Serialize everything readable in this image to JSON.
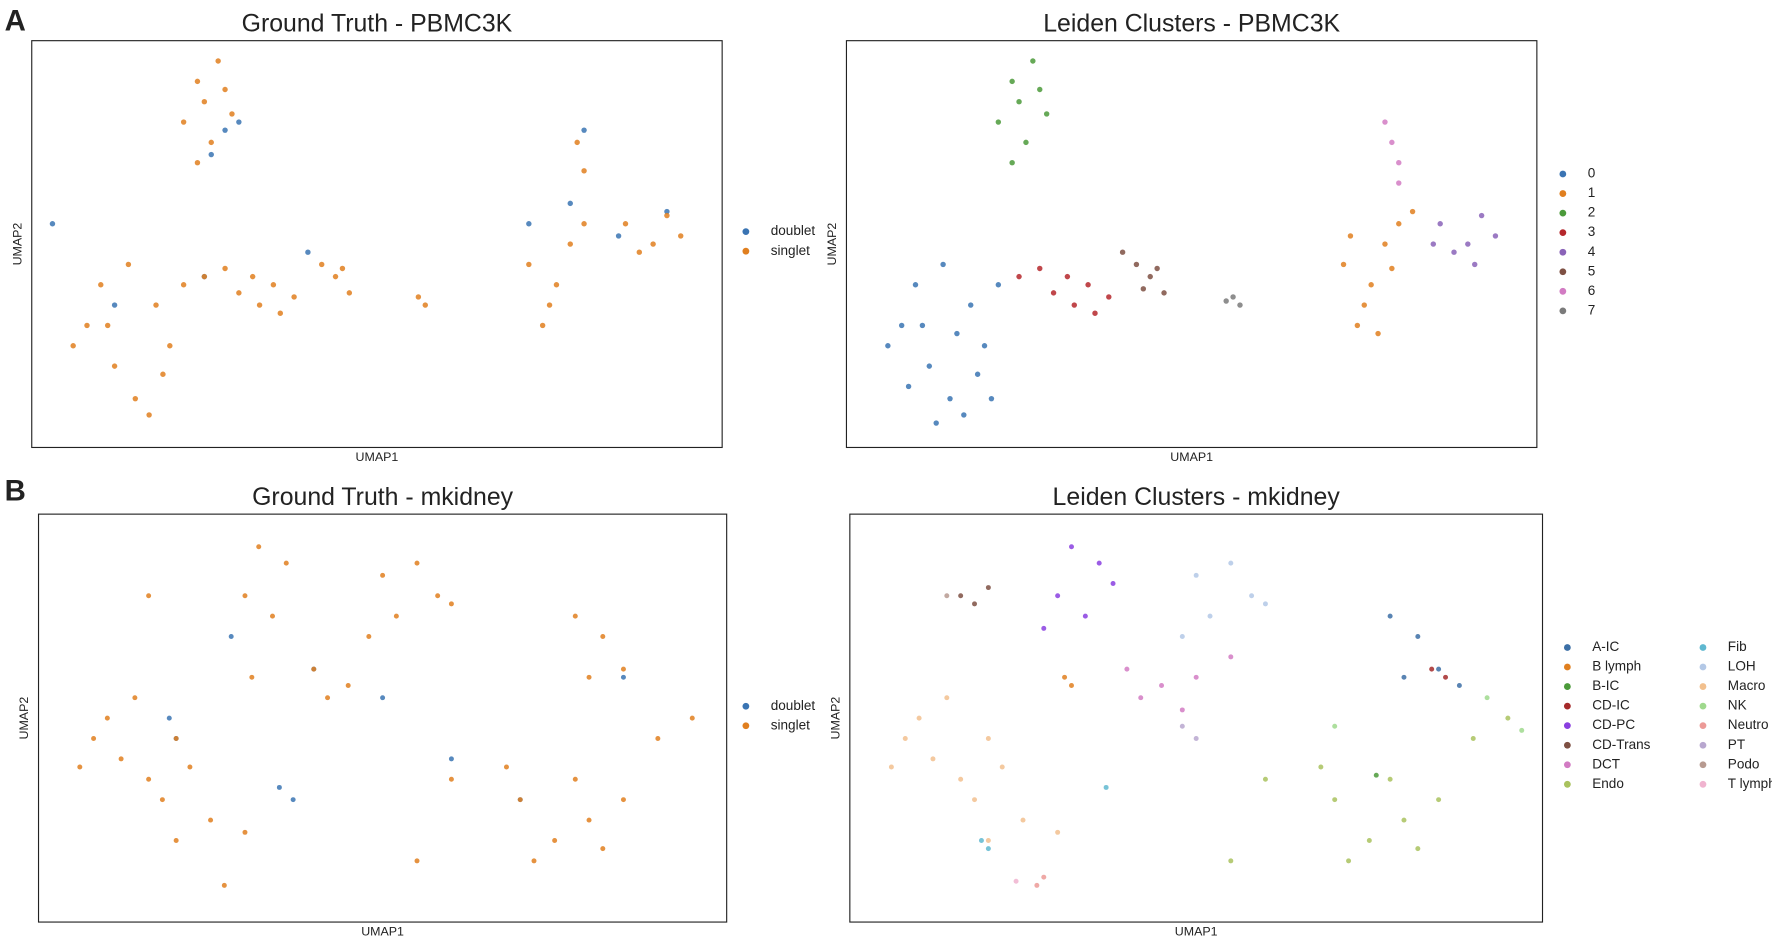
{
  "panel_labels": [
    "A",
    "B"
  ],
  "chart_data": [
    {
      "type": "scatter",
      "title": "Ground Truth - PBMC3K",
      "xlabel": "UMAP1",
      "ylabel": "UMAP2",
      "xlim": [
        0,
        100
      ],
      "ylim": [
        0,
        100
      ],
      "legend": "outside right",
      "legend_columns": 1,
      "series": [
        {
          "name": "doublet",
          "color": "#3a74b3",
          "x": [
            28,
            26,
            30,
            12,
            25,
            72,
            78,
            92,
            80,
            40,
            85,
            3
          ],
          "y": [
            78,
            72,
            80,
            35,
            42,
            55,
            60,
            58,
            78,
            48,
            52,
            55
          ]
        },
        {
          "name": "singlet",
          "color": "#e07f1f",
          "x": [
            8,
            12,
            15,
            10,
            18,
            20,
            14,
            6,
            17,
            22,
            11,
            19,
            24,
            27,
            25,
            28,
            22,
            26,
            29,
            24,
            25,
            30,
            35,
            33,
            28,
            38,
            32,
            36,
            44,
            46,
            42,
            45,
            72,
            75,
            78,
            74,
            80,
            76,
            86,
            90,
            92,
            88,
            94,
            79,
            80,
            56,
            57
          ],
          "y": [
            30,
            20,
            12,
            40,
            35,
            25,
            45,
            25,
            8,
            40,
            30,
            18,
            90,
            95,
            85,
            88,
            80,
            75,
            82,
            70,
            42,
            38,
            40,
            35,
            44,
            37,
            42,
            33,
            42,
            38,
            45,
            44,
            45,
            35,
            50,
            30,
            55,
            40,
            55,
            50,
            57,
            48,
            52,
            75,
            68,
            37,
            35
          ]
        }
      ]
    },
    {
      "type": "scatter",
      "title": "Leiden Clusters - PBMC3K",
      "xlabel": "UMAP1",
      "ylabel": "UMAP2",
      "xlim": [
        0,
        100
      ],
      "ylim": [
        0,
        100
      ],
      "legend": "outside right",
      "legend_columns": 1,
      "series": [
        {
          "name": "0",
          "color": "#3a74b3",
          "x": [
            8,
            12,
            15,
            10,
            18,
            20,
            14,
            6,
            17,
            22,
            11,
            19,
            9,
            13,
            16,
            21
          ],
          "y": [
            30,
            20,
            12,
            40,
            35,
            25,
            45,
            25,
            8,
            40,
            30,
            18,
            15,
            6,
            28,
            12
          ]
        },
        {
          "name": "1",
          "color": "#e07f1f",
          "x": [
            72,
            75,
            78,
            74,
            80,
            76,
            73,
            79,
            77,
            82
          ],
          "y": [
            45,
            35,
            50,
            30,
            55,
            40,
            52,
            44,
            28,
            58
          ]
        },
        {
          "name": "2",
          "color": "#4b9a3a",
          "x": [
            24,
            27,
            25,
            28,
            22,
            26,
            29,
            24
          ],
          "y": [
            90,
            95,
            85,
            88,
            80,
            75,
            82,
            70
          ]
        },
        {
          "name": "3",
          "color": "#b5272c",
          "x": [
            25,
            30,
            35,
            33,
            28,
            38,
            32,
            36
          ],
          "y": [
            42,
            38,
            40,
            35,
            44,
            37,
            42,
            33
          ]
        },
        {
          "name": "4",
          "color": "#8a63b8",
          "x": [
            86,
            90,
            92,
            88,
            94,
            85,
            91
          ],
          "y": [
            55,
            50,
            57,
            48,
            52,
            50,
            45
          ]
        },
        {
          "name": "5",
          "color": "#7e5043",
          "x": [
            44,
            46,
            42,
            45,
            43,
            40
          ],
          "y": [
            42,
            38,
            45,
            44,
            39,
            48
          ]
        },
        {
          "name": "6",
          "color": "#d27bc3",
          "x": [
            79,
            80,
            80,
            78
          ],
          "y": [
            75,
            70,
            65,
            80
          ]
        },
        {
          "name": "7",
          "color": "#7a7a7a",
          "x": [
            56,
            57,
            55
          ],
          "y": [
            37,
            35,
            36
          ]
        }
      ]
    },
    {
      "type": "scatter",
      "title": "Ground Truth - mkidney",
      "xlabel": "UMAP1",
      "ylabel": "UMAP2",
      "xlim": [
        0,
        100
      ],
      "ylim": [
        0,
        100
      ],
      "legend": "outside right",
      "legend_columns": 1,
      "series": [
        {
          "name": "doublet",
          "color": "#3a74b3",
          "x": [
            35,
            37,
            19,
            20,
            40,
            70,
            85,
            50,
            28,
            60
          ],
          "y": [
            33,
            30,
            50,
            45,
            62,
            30,
            60,
            55,
            70,
            40
          ]
        },
        {
          "name": "singlet",
          "color": "#e07f1f",
          "x": [
            8,
            12,
            16,
            10,
            20,
            14,
            18,
            22,
            6,
            25,
            20,
            30,
            70,
            75,
            80,
            72,
            78,
            82,
            68,
            85,
            90,
            95,
            60,
            55,
            50,
            55,
            52,
            58,
            48,
            60,
            78,
            82,
            85,
            80,
            32,
            36,
            30,
            34,
            40,
            45,
            42,
            16,
            27,
            31
          ],
          "y": [
            45,
            40,
            35,
            50,
            45,
            55,
            30,
            38,
            38,
            25,
            20,
            22,
            30,
            20,
            25,
            15,
            35,
            18,
            38,
            30,
            45,
            50,
            35,
            15,
            85,
            88,
            75,
            80,
            70,
            78,
            75,
            70,
            62,
            60,
            92,
            88,
            80,
            75,
            62,
            58,
            55,
            80,
            9,
            60
          ]
        }
      ]
    },
    {
      "type": "scatter",
      "title": "Leiden Clusters - mkidney",
      "xlabel": "UMAP1",
      "ylabel": "UMAP2",
      "xlim": [
        0,
        100
      ],
      "ylim": [
        0,
        100
      ],
      "legend": "outside right",
      "legend_columns": 2,
      "series": [
        {
          "name": "A-IC",
          "color": "#3c6fa6",
          "x": [
            78,
            82,
            85,
            80,
            88
          ],
          "y": [
            75,
            70,
            62,
            60,
            58
          ]
        },
        {
          "name": "B lymph",
          "color": "#e07f1f",
          "x": [
            31,
            32
          ],
          "y": [
            60,
            58
          ]
        },
        {
          "name": "B-IC",
          "color": "#4b9a3a",
          "x": [
            76
          ],
          "y": [
            36
          ]
        },
        {
          "name": "CD-IC",
          "color": "#a52a2a",
          "x": [
            84,
            86
          ],
          "y": [
            62,
            60
          ]
        },
        {
          "name": "CD-PC",
          "color": "#8a3fe0",
          "x": [
            32,
            36,
            30,
            34,
            38,
            28
          ],
          "y": [
            92,
            88,
            80,
            75,
            83,
            72
          ]
        },
        {
          "name": "CD-Trans",
          "color": "#7e5043",
          "x": [
            16,
            18,
            20
          ],
          "y": [
            80,
            78,
            82
          ]
        },
        {
          "name": "DCT",
          "color": "#d27bc3",
          "x": [
            40,
            45,
            50,
            42,
            55,
            48
          ],
          "y": [
            62,
            58,
            60,
            55,
            65,
            52
          ]
        },
        {
          "name": "Endo",
          "color": "#a9c25e",
          "x": [
            70,
            75,
            80,
            72,
            78,
            82,
            68,
            85,
            90,
            95,
            60,
            55
          ],
          "y": [
            30,
            20,
            25,
            15,
            35,
            18,
            38,
            30,
            45,
            50,
            35,
            15
          ]
        },
        {
          "name": "Fib",
          "color": "#5fb8d0",
          "x": [
            19,
            20,
            37
          ],
          "y": [
            20,
            18,
            33
          ]
        },
        {
          "name": "LOH",
          "color": "#b3c8e6",
          "x": [
            50,
            55,
            52,
            58,
            48,
            60
          ],
          "y": [
            85,
            88,
            75,
            80,
            70,
            78
          ]
        },
        {
          "name": "Macro",
          "color": "#f2c08e",
          "x": [
            8,
            12,
            16,
            10,
            20,
            14,
            18,
            22,
            6,
            25,
            20,
            30
          ],
          "y": [
            45,
            40,
            35,
            50,
            45,
            55,
            30,
            38,
            38,
            25,
            20,
            22
          ]
        },
        {
          "name": "NK",
          "color": "#9fd98d",
          "x": [
            92,
            97,
            70
          ],
          "y": [
            55,
            47,
            48
          ]
        },
        {
          "name": "Neutro",
          "color": "#ec9a97",
          "x": [
            27,
            28
          ],
          "y": [
            9,
            11
          ]
        },
        {
          "name": "PT",
          "color": "#b8a7cf",
          "x": [
            50,
            48
          ],
          "y": [
            45,
            48
          ]
        },
        {
          "name": "Podo",
          "color": "#b79a90",
          "x": [
            14
          ],
          "y": [
            80
          ]
        },
        {
          "name": "T lymph",
          "color": "#f0b3cf",
          "x": [
            24
          ],
          "y": [
            10
          ]
        }
      ]
    }
  ]
}
